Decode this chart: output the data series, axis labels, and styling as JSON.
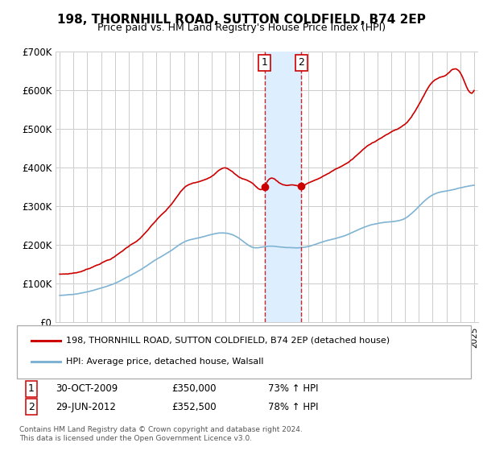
{
  "title": "198, THORNHILL ROAD, SUTTON COLDFIELD, B74 2EP",
  "subtitle": "Price paid vs. HM Land Registry's House Price Index (HPI)",
  "legend_line1": "198, THORNHILL ROAD, SUTTON COLDFIELD, B74 2EP (detached house)",
  "legend_line2": "HPI: Average price, detached house, Walsall",
  "sale1_label": "1",
  "sale1_date": "30-OCT-2009",
  "sale1_price": "£350,000",
  "sale1_hpi": "73% ↑ HPI",
  "sale2_label": "2",
  "sale2_date": "29-JUN-2012",
  "sale2_price": "£352,500",
  "sale2_hpi": "78% ↑ HPI",
  "footer": "Contains HM Land Registry data © Crown copyright and database right 2024.\nThis data is licensed under the Open Government Licence v3.0.",
  "red_color": "#cc0000",
  "blue_color": "#7fb3d3",
  "shade_color": "#ddeeff",
  "grid_color": "#cccccc",
  "background_color": "#ffffff",
  "ylim": [
    0,
    700000
  ],
  "yticks": [
    0,
    100000,
    200000,
    300000,
    400000,
    500000,
    600000,
    700000
  ],
  "ytick_labels": [
    "£0",
    "£100K",
    "£200K",
    "£300K",
    "£400K",
    "£500K",
    "£600K",
    "£700K"
  ],
  "sale1_x": 2009.83,
  "sale1_y": 350000,
  "sale2_x": 2012.5,
  "sale2_y": 352500,
  "xlim_min": 1994.7,
  "xlim_max": 2025.3
}
